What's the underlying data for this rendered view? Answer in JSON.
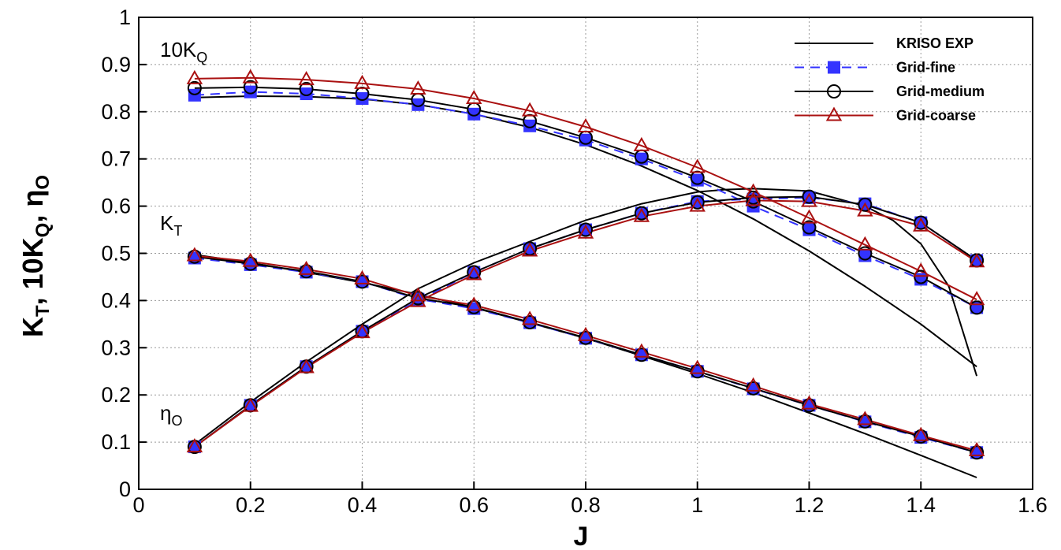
{
  "chart_data": {
    "type": "line",
    "xlabel": "J",
    "ylabel_parts": {
      "k": "K",
      "t": "T",
      "sep1": ", 10K",
      "q": "Q",
      "sep2": ", η",
      "o": "O"
    },
    "xlim": [
      0,
      1.6
    ],
    "ylim": [
      0,
      1
    ],
    "xticks": [
      "0",
      "0.2",
      "0.4",
      "0.6",
      "0.8",
      "1",
      "1.2",
      "1.4",
      "1.6"
    ],
    "yticks": [
      "0",
      "0.1",
      "0.2",
      "0.3",
      "0.4",
      "0.5",
      "0.6",
      "0.7",
      "0.8",
      "0.9",
      "1"
    ],
    "grid": true,
    "legend_position": "top-right",
    "annotations": {
      "kq": {
        "main": "10K",
        "sub": "Q"
      },
      "kt": {
        "main": "K",
        "sub": "T"
      },
      "eta": {
        "main": "η",
        "sub": "O"
      }
    },
    "colors": {
      "exp": "#000000",
      "fine": "#3333ff",
      "medium": "#000000",
      "coarse": "#aa1111"
    },
    "series": [
      {
        "name": "KRISO EXP",
        "style": "solid",
        "marker": "none",
        "curves": {
          "kq": {
            "x": [
              0.1,
              0.2,
              0.3,
              0.4,
              0.5,
              0.6,
              0.7,
              0.8,
              0.9,
              1.0,
              1.1,
              1.2,
              1.3,
              1.4,
              1.5
            ],
            "y": [
              0.83,
              0.833,
              0.832,
              0.827,
              0.815,
              0.795,
              0.767,
              0.73,
              0.685,
              0.633,
              0.573,
              0.505,
              0.43,
              0.35,
              0.26
            ]
          },
          "kt": {
            "x": [
              0.1,
              0.2,
              0.3,
              0.4,
              0.5,
              0.6,
              0.7,
              0.8,
              0.9,
              1.0,
              1.1,
              1.2,
              1.3,
              1.4,
              1.5
            ],
            "y": [
              0.497,
              0.48,
              0.46,
              0.438,
              0.413,
              0.385,
              0.353,
              0.32,
              0.283,
              0.245,
              0.205,
              0.162,
              0.118,
              0.072,
              0.025
            ]
          },
          "eta": {
            "x": [
              0.1,
              0.2,
              0.3,
              0.4,
              0.5,
              0.6,
              0.7,
              0.8,
              0.9,
              1.0,
              1.05,
              1.1,
              1.2,
              1.3,
              1.35,
              1.4,
              1.45,
              1.5
            ],
            "y": [
              0.095,
              0.185,
              0.27,
              0.35,
              0.425,
              0.48,
              0.525,
              0.57,
              0.605,
              0.63,
              0.635,
              0.637,
              0.632,
              0.6,
              0.57,
              0.52,
              0.43,
              0.24
            ]
          }
        }
      },
      {
        "name": "Grid-fine",
        "style": "dashed",
        "marker": "square",
        "curves": {
          "kq": {
            "x": [
              0.1,
              0.2,
              0.3,
              0.4,
              0.5,
              0.6,
              0.7,
              0.8,
              0.9,
              1.0,
              1.1,
              1.2,
              1.3,
              1.4,
              1.5
            ],
            "y": [
              0.835,
              0.842,
              0.838,
              0.828,
              0.815,
              0.795,
              0.77,
              0.74,
              0.7,
              0.655,
              0.6,
              0.55,
              0.495,
              0.445,
              0.385
            ]
          },
          "kt": {
            "x": [
              0.1,
              0.2,
              0.3,
              0.4,
              0.5,
              0.6,
              0.7,
              0.8,
              0.9,
              1.0,
              1.1,
              1.2,
              1.3,
              1.4,
              1.5
            ],
            "y": [
              0.49,
              0.476,
              0.46,
              0.44,
              0.403,
              0.383,
              0.353,
              0.32,
              0.285,
              0.25,
              0.213,
              0.178,
              0.143,
              0.11,
              0.078
            ]
          },
          "eta": {
            "x": [
              0.1,
              0.2,
              0.3,
              0.4,
              0.5,
              0.6,
              0.7,
              0.8,
              0.9,
              1.0,
              1.1,
              1.2,
              1.3,
              1.4,
              1.5
            ],
            "y": [
              0.09,
              0.178,
              0.26,
              0.335,
              0.4,
              0.46,
              0.51,
              0.55,
              0.585,
              0.61,
              0.615,
              0.618,
              0.605,
              0.565,
              0.485
            ]
          }
        }
      },
      {
        "name": "Grid-medium",
        "style": "solid",
        "marker": "circle",
        "curves": {
          "kq": {
            "x": [
              0.1,
              0.2,
              0.3,
              0.4,
              0.5,
              0.6,
              0.7,
              0.8,
              0.9,
              1.0,
              1.1,
              1.2,
              1.3,
              1.4,
              1.5
            ],
            "y": [
              0.85,
              0.852,
              0.848,
              0.838,
              0.825,
              0.805,
              0.78,
              0.745,
              0.705,
              0.66,
              0.61,
              0.555,
              0.5,
              0.45,
              0.385
            ]
          },
          "kt": {
            "x": [
              0.1,
              0.2,
              0.3,
              0.4,
              0.5,
              0.6,
              0.7,
              0.8,
              0.9,
              1.0,
              1.1,
              1.2,
              1.3,
              1.4,
              1.5
            ],
            "y": [
              0.493,
              0.478,
              0.462,
              0.44,
              0.405,
              0.386,
              0.354,
              0.321,
              0.285,
              0.25,
              0.214,
              0.178,
              0.144,
              0.112,
              0.078
            ]
          },
          "eta": {
            "x": [
              0.1,
              0.2,
              0.3,
              0.4,
              0.5,
              0.6,
              0.7,
              0.8,
              0.9,
              1.0,
              1.1,
              1.2,
              1.3,
              1.4,
              1.5
            ],
            "y": [
              0.09,
              0.178,
              0.26,
              0.335,
              0.405,
              0.46,
              0.51,
              0.55,
              0.585,
              0.608,
              0.618,
              0.62,
              0.603,
              0.565,
              0.485
            ]
          }
        }
      },
      {
        "name": "Grid-coarse",
        "style": "solid",
        "marker": "triangle",
        "curves": {
          "kq": {
            "x": [
              0.1,
              0.2,
              0.3,
              0.4,
              0.5,
              0.6,
              0.7,
              0.8,
              0.9,
              1.0,
              1.1,
              1.2,
              1.3,
              1.4,
              1.5
            ],
            "y": [
              0.87,
              0.872,
              0.868,
              0.86,
              0.848,
              0.828,
              0.802,
              0.768,
              0.728,
              0.682,
              0.63,
              0.575,
              0.518,
              0.462,
              0.402
            ]
          },
          "kt": {
            "x": [
              0.1,
              0.2,
              0.3,
              0.4,
              0.5,
              0.6,
              0.7,
              0.8,
              0.9,
              1.0,
              1.1,
              1.2,
              1.3,
              1.4,
              1.5
            ],
            "y": [
              0.495,
              0.483,
              0.466,
              0.446,
              0.41,
              0.39,
              0.36,
              0.326,
              0.291,
              0.256,
              0.219,
              0.181,
              0.148,
              0.114,
              0.082
            ]
          },
          "eta": {
            "x": [
              0.1,
              0.2,
              0.3,
              0.4,
              0.5,
              0.6,
              0.7,
              0.8,
              0.9,
              1.0,
              1.1,
              1.2,
              1.3,
              1.4,
              1.5
            ],
            "y": [
              0.09,
              0.176,
              0.258,
              0.332,
              0.398,
              0.455,
              0.505,
              0.543,
              0.578,
              0.6,
              0.612,
              0.61,
              0.59,
              0.558,
              0.482
            ]
          }
        }
      }
    ]
  }
}
